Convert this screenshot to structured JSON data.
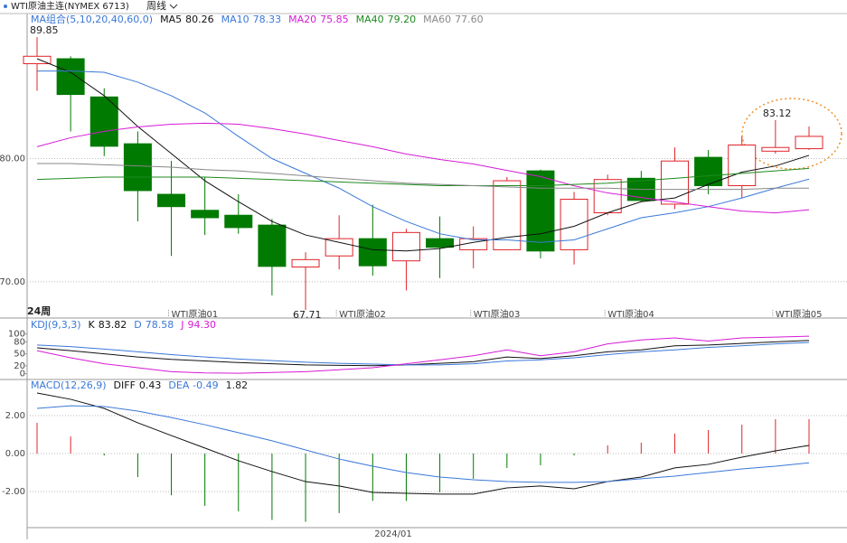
{
  "header": {
    "symbol": "WTI原油主连(NYMEX 6713)",
    "period": "周线"
  },
  "chart_data": [
    {
      "type": "candlestick",
      "legend_title": "MA组合(5,10,20,40,60,0)",
      "period_label": "24周",
      "categories": [
        null,
        null,
        null,
        null,
        "WTI原油01",
        null,
        null,
        null,
        null,
        "WTI原油02",
        null,
        null,
        null,
        "WTI原油03",
        null,
        null,
        null,
        "WTI原油04",
        null,
        null,
        null,
        null,
        "WTI原油05",
        null
      ],
      "open": [
        87.7,
        88.1,
        85.0,
        81.2,
        77.1,
        75.8,
        75.4,
        74.6,
        71.2,
        72.1,
        73.5,
        71.7,
        73.5,
        72.6,
        72.6,
        79.0,
        72.6,
        75.6,
        78.4,
        76.3,
        80.1,
        77.8,
        80.6,
        80.8
      ],
      "high": [
        89.85,
        88.3,
        85.7,
        82.2,
        79.8,
        78.5,
        77.1,
        75.1,
        72.4,
        75.4,
        76.25,
        74.3,
        75.3,
        74.5,
        78.5,
        79.1,
        77.3,
        78.7,
        79.0,
        80.9,
        80.7,
        81.8,
        83.12,
        82.6
      ],
      "low": [
        85.5,
        82.2,
        80.2,
        74.9,
        72.1,
        73.8,
        73.9,
        68.9,
        67.71,
        71.0,
        70.5,
        69.3,
        70.3,
        71.1,
        72.6,
        71.9,
        71.4,
        75.4,
        76.5,
        75.9,
        77.1,
        76.8,
        80.4,
        80.7
      ],
      "close": [
        88.3,
        85.2,
        81.0,
        77.4,
        76.1,
        75.2,
        74.4,
        71.25,
        71.8,
        73.5,
        71.3,
        74.0,
        72.8,
        73.5,
        78.2,
        72.5,
        76.7,
        78.3,
        76.6,
        79.8,
        77.8,
        81.1,
        80.9,
        81.8
      ],
      "up_color": "#e0242a",
      "down_color": "#007a00",
      "series": [
        {
          "name": "MA5",
          "current": "80.26",
          "color": "#111111",
          "values": [
            88.1,
            87.0,
            85.1,
            82.6,
            80.4,
            78.2,
            76.5,
            74.9,
            73.8,
            73.2,
            72.6,
            72.5,
            72.7,
            73.2,
            73.6,
            73.9,
            74.5,
            75.6,
            76.5,
            76.8,
            77.9,
            78.9,
            79.4,
            80.26
          ]
        },
        {
          "name": "MA10",
          "current": "78.33",
          "color": "#3a78d8",
          "values": [
            87.1,
            87.1,
            87.0,
            86.2,
            85.1,
            83.7,
            81.8,
            80.0,
            78.8,
            77.6,
            76.1,
            74.9,
            73.9,
            73.4,
            73.4,
            73.2,
            73.4,
            74.3,
            75.2,
            75.6,
            76.1,
            76.8,
            77.6,
            78.33
          ]
        },
        {
          "name": "MA20",
          "current": "75.85",
          "color": "#d61ad6",
          "values": [
            80.96,
            81.69,
            82.21,
            82.57,
            82.79,
            82.87,
            82.79,
            82.43,
            81.99,
            81.47,
            80.96,
            80.37,
            79.93,
            79.56,
            79.04,
            78.53,
            77.79,
            77.21,
            76.84,
            76.47,
            76.1,
            75.74,
            75.59,
            75.85
          ]
        },
        {
          "name": "MA40",
          "current": "79.20",
          "color": "#1e8a1e",
          "values": [
            78.3,
            78.4,
            78.5,
            78.5,
            78.5,
            78.5,
            78.4,
            78.3,
            78.2,
            78.1,
            78.0,
            77.9,
            77.8,
            77.8,
            77.8,
            77.8,
            77.9,
            78.0,
            78.2,
            78.4,
            78.6,
            78.8,
            79.0,
            79.2
          ]
        },
        {
          "name": "MA60",
          "current": "77.60",
          "color": "#888888",
          "values": [
            79.6,
            79.6,
            79.5,
            79.4,
            79.3,
            79.1,
            79.0,
            78.8,
            78.6,
            78.4,
            78.2,
            78.0,
            77.9,
            77.8,
            77.7,
            77.6,
            77.6,
            77.6,
            77.5,
            77.5,
            77.5,
            77.5,
            77.6,
            77.6
          ]
        }
      ],
      "ylim": [
        67.5,
        91.4
      ],
      "yticks": [
        {
          "value": 70,
          "label": "70.00"
        },
        {
          "value": 80,
          "label": "80.00"
        }
      ]
    },
    {
      "type": "line",
      "legend_title": "KDJ(9,3,3)",
      "series": [
        {
          "name": "K",
          "current": "83.82",
          "color": "#111111",
          "values": [
            65,
            58,
            50,
            42,
            36,
            32,
            28,
            25,
            22,
            21,
            20,
            22,
            26,
            30,
            42,
            38,
            45,
            55,
            60,
            70,
            72,
            76,
            80,
            83.82
          ]
        },
        {
          "name": "D",
          "current": "78.58",
          "color": "#3a78d8",
          "values": [
            72,
            68,
            62,
            55,
            48,
            42,
            37,
            33,
            29,
            26,
            24,
            22,
            22,
            25,
            32,
            35,
            40,
            48,
            55,
            60,
            66,
            70,
            75,
            78.58
          ]
        },
        {
          "name": "J",
          "current": "94.30",
          "color": "#d61ad6",
          "values": [
            58,
            40,
            25,
            15,
            5,
            2,
            1,
            3,
            5,
            10,
            15,
            25,
            35,
            45,
            60,
            45,
            55,
            75,
            85,
            90,
            82,
            90,
            92,
            94.3
          ]
        }
      ],
      "ylim": [
        -10,
        115
      ],
      "yticks": [
        100,
        80,
        50,
        20,
        0
      ]
    },
    {
      "type": "macd",
      "legend_title": "MACD(12,26,9)",
      "date_label": "2024/01",
      "series": [
        {
          "name": "DIFF",
          "current": "0.43",
          "color": "#111111",
          "values": [
            3.19,
            2.86,
            2.38,
            1.62,
            0.95,
            0.29,
            -0.38,
            -0.95,
            -1.48,
            -1.71,
            -2.05,
            -2.1,
            -2.14,
            -2.14,
            -1.81,
            -1.71,
            -1.86,
            -1.48,
            -1.24,
            -0.76,
            -0.57,
            -0.19,
            0.14,
            0.43
          ]
        },
        {
          "name": "DEA",
          "current": "-0.49",
          "color": "#3a78d8",
          "values": [
            2.38,
            2.52,
            2.48,
            2.24,
            1.9,
            1.52,
            1.1,
            0.67,
            0.19,
            -0.29,
            -0.67,
            -1.0,
            -1.24,
            -1.38,
            -1.48,
            -1.52,
            -1.52,
            -1.48,
            -1.33,
            -1.19,
            -1.0,
            -0.81,
            -0.67,
            -0.49
          ]
        }
      ],
      "histogram": {
        "current": "1.82",
        "up_color": "#e0242a",
        "down_color": "#007a00",
        "values": [
          1.62,
          0.9,
          -0.1,
          -1.24,
          -2.2,
          -2.76,
          -3.05,
          -3.5,
          -3.6,
          -3.14,
          -2.5,
          -2.5,
          -2.05,
          -1.33,
          -0.76,
          -0.62,
          -0.1,
          0.43,
          0.57,
          1.05,
          1.24,
          1.52,
          1.81,
          1.82
        ]
      },
      "ylim": [
        -3.86,
        3.81
      ],
      "yticks": [
        {
          "value": 2,
          "label": "2.00"
        },
        {
          "value": 0,
          "label": "0.00"
        },
        {
          "value": -2,
          "label": "-2.00"
        }
      ]
    }
  ]
}
